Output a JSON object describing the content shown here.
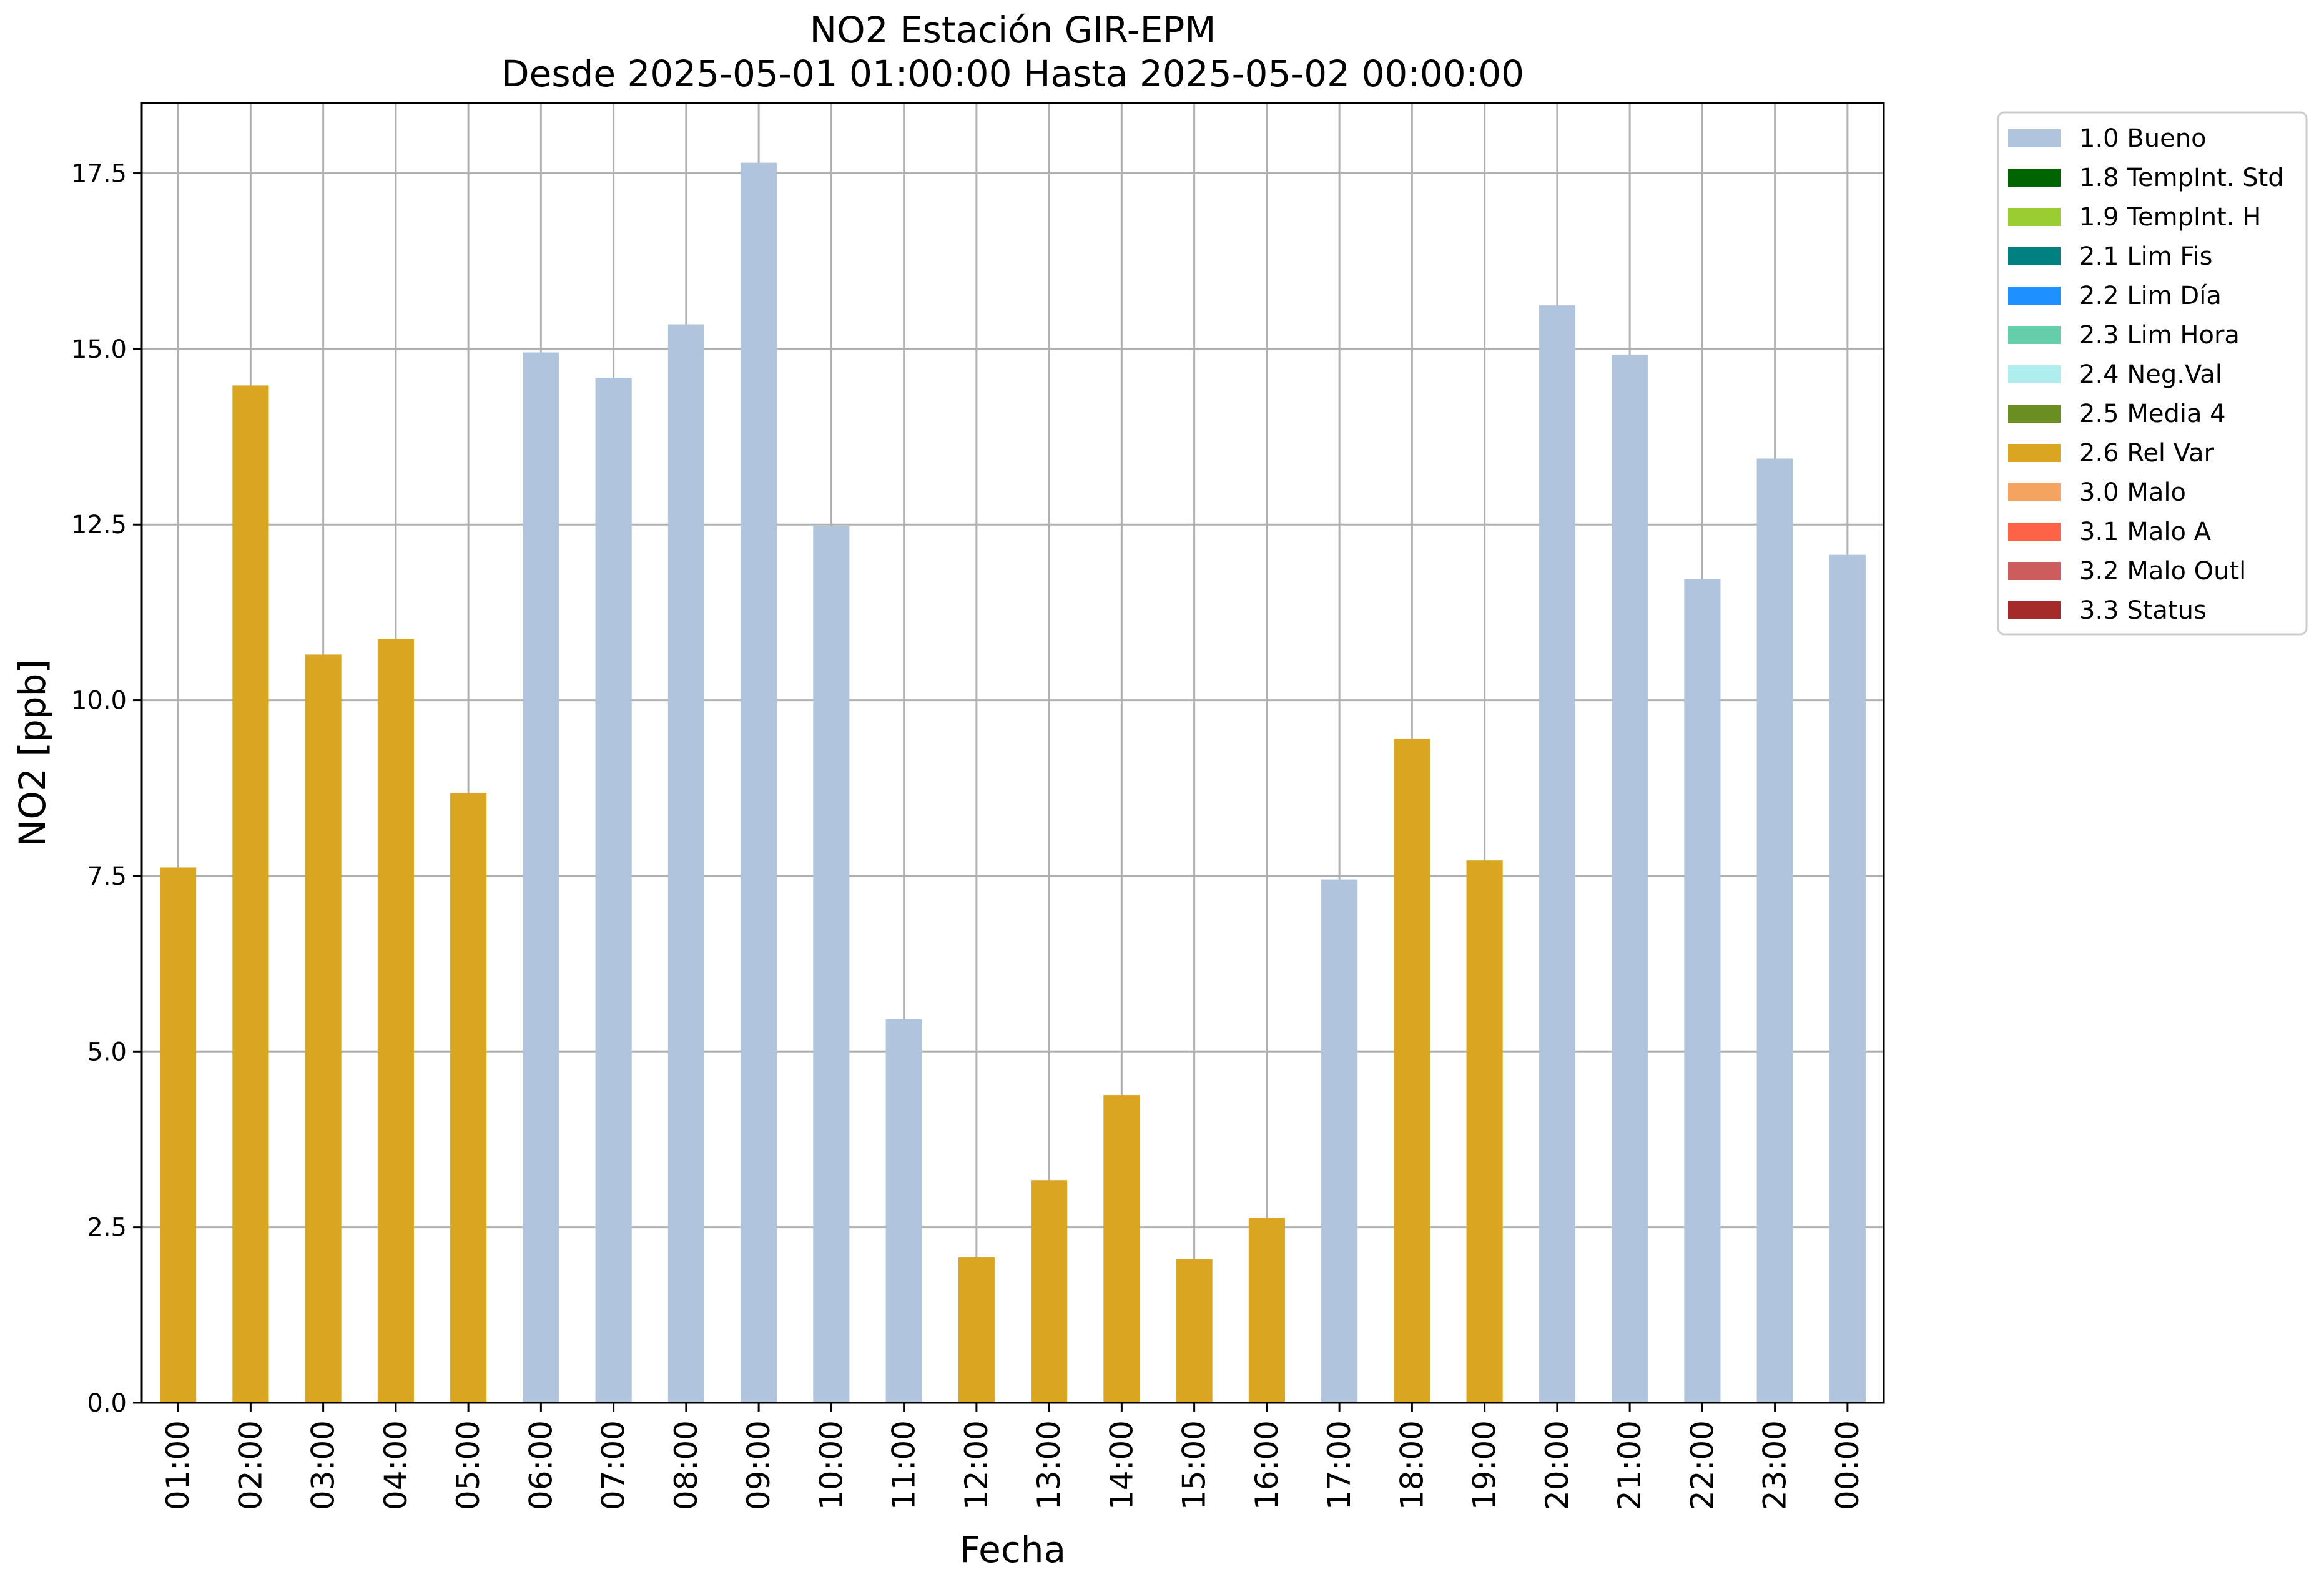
{
  "chart_data": {
    "type": "bar",
    "title": "NO2 Estación GIR-EPM",
    "subtitle": "Desde 2025-05-01 01:00:00 Hasta 2025-05-02 00:00:00",
    "xlabel": "Fecha",
    "ylabel": "NO2 [ppb]",
    "ylim": [
      0,
      18.5
    ],
    "y_ticks": [
      "0.0",
      "2.5",
      "5.0",
      "7.5",
      "10.0",
      "12.5",
      "15.0",
      "17.5"
    ],
    "grid": true,
    "legend_position": "outside-right",
    "categories": [
      "01:00",
      "02:00",
      "03:00",
      "04:00",
      "05:00",
      "06:00",
      "07:00",
      "08:00",
      "09:00",
      "10:00",
      "11:00",
      "12:00",
      "13:00",
      "14:00",
      "15:00",
      "16:00",
      "17:00",
      "18:00",
      "19:00",
      "20:00",
      "21:00",
      "22:00",
      "23:00",
      "00:00"
    ],
    "values": [
      7.62,
      14.48,
      10.65,
      10.87,
      8.68,
      14.95,
      14.59,
      15.35,
      17.65,
      12.48,
      5.46,
      2.07,
      3.17,
      4.38,
      2.05,
      2.63,
      7.45,
      9.45,
      7.72,
      15.62,
      14.92,
      11.72,
      13.44,
      12.07
    ],
    "flags": [
      "2.6 Rel Var",
      "2.6 Rel Var",
      "2.6 Rel Var",
      "2.6 Rel Var",
      "2.6 Rel Var",
      "1.0 Bueno",
      "1.0 Bueno",
      "1.0 Bueno",
      "1.0 Bueno",
      "1.0 Bueno",
      "1.0 Bueno",
      "2.6 Rel Var",
      "2.6 Rel Var",
      "2.6 Rel Var",
      "2.6 Rel Var",
      "2.6 Rel Var",
      "1.0 Bueno",
      "2.6 Rel Var",
      "2.6 Rel Var",
      "1.0 Bueno",
      "1.0 Bueno",
      "1.0 Bueno",
      "1.0 Bueno",
      "1.0 Bueno"
    ],
    "legend": [
      {
        "label": "1.0 Bueno",
        "color": "#b0c4de"
      },
      {
        "label": "1.8 TempInt. Std",
        "color": "#006400"
      },
      {
        "label": "1.9 TempInt. H",
        "color": "#9acd32"
      },
      {
        "label": "2.1 Lim Fis",
        "color": "#008080"
      },
      {
        "label": "2.2 Lim Día",
        "color": "#1e90ff"
      },
      {
        "label": "2.3 Lim Hora",
        "color": "#66cdaa"
      },
      {
        "label": "2.4 Neg.Val",
        "color": "#afeeee"
      },
      {
        "label": "2.5 Media 4",
        "color": "#6b8e23"
      },
      {
        "label": "2.6 Rel Var",
        "color": "#daa520"
      },
      {
        "label": "3.0 Malo",
        "color": "#f4a460"
      },
      {
        "label": "3.1 Malo A",
        "color": "#ff6347"
      },
      {
        "label": "3.2 Malo Outl",
        "color": "#cd5c5c"
      },
      {
        "label": "3.3 Status",
        "color": "#a52a2a"
      }
    ]
  }
}
